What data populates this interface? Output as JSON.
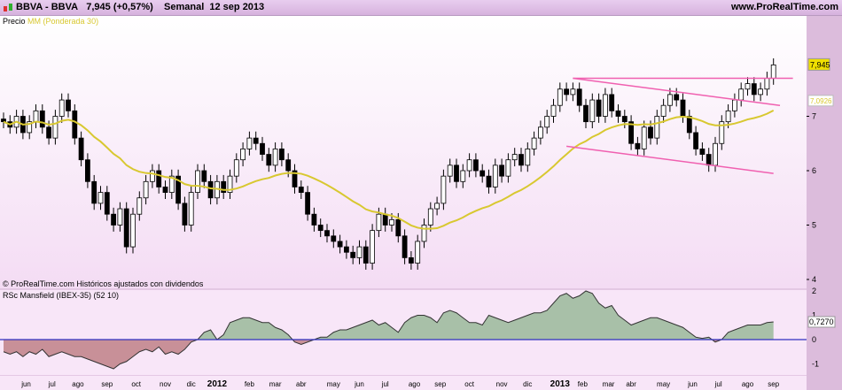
{
  "header": {
    "symbol": "BBVA - BBVA",
    "price": "7,945 (+0,57%)",
    "period": "Semanal",
    "date": "12 sep 2013",
    "site": "www.ProRealTime.com"
  },
  "legend": {
    "price": "Precio",
    "ma": "MM (Ponderada 30)"
  },
  "footer_note": "© ProRealTime.com Históricos ajustados con dividendos",
  "indicator_title": "RSc Mansfield (IBEX-35) (52 10)",
  "colors": {
    "ma": "#d8c830",
    "trend": "#f060b0",
    "rsc_pos": "#a8c0a8",
    "rsc_neg": "#c89098",
    "zero": "#3030c0",
    "bg": "#f8e6f8"
  },
  "chart_data": [
    {
      "type": "candlestick",
      "ylim": [
        3.9,
        8.7
      ],
      "yticks": [
        "4",
        "5",
        "6",
        "7"
      ],
      "last_label": "7,945",
      "ma_label": "7,0926",
      "xticks": [
        "jun",
        "jul",
        "ago",
        "sep",
        "oct",
        "nov",
        "dic",
        "2012",
        "feb",
        "mar",
        "abr",
        "may",
        "jun",
        "jul",
        "ago",
        "sep",
        "oct",
        "nov",
        "dic",
        "2013",
        "feb",
        "mar",
        "abr",
        "may",
        "jun",
        "jul",
        "ago",
        "sep"
      ],
      "xtick_weeks": [
        3.5,
        7.5,
        11.5,
        16,
        20.5,
        25,
        29,
        33,
        38,
        42,
        46,
        51,
        55,
        59,
        63.5,
        67.5,
        72,
        77,
        81,
        86,
        89.5,
        93.5,
        97,
        102,
        106.5,
        110.5,
        115,
        119
      ],
      "close": [
        6.9,
        6.8,
        7.0,
        6.7,
        6.9,
        7.1,
        6.8,
        6.6,
        7.0,
        7.3,
        7.1,
        6.6,
        6.2,
        5.8,
        5.4,
        5.6,
        5.2,
        5.0,
        5.3,
        4.6,
        5.2,
        5.5,
        5.8,
        6.0,
        5.7,
        5.6,
        5.9,
        5.4,
        5.0,
        5.6,
        6.0,
        5.8,
        5.5,
        5.8,
        5.6,
        5.9,
        6.2,
        6.4,
        6.6,
        6.5,
        6.3,
        6.1,
        6.4,
        6.2,
        6.0,
        5.7,
        5.6,
        5.2,
        5.0,
        4.9,
        4.8,
        4.7,
        4.6,
        4.5,
        4.4,
        4.6,
        4.3,
        4.9,
        5.2,
        5.0,
        5.1,
        4.8,
        4.4,
        4.3,
        4.7,
        5.0,
        5.3,
        5.4,
        5.9,
        6.1,
        5.8,
        6.0,
        6.2,
        6.0,
        5.9,
        5.7,
        6.1,
        5.9,
        6.2,
        6.3,
        6.1,
        6.4,
        6.6,
        6.8,
        7.0,
        7.2,
        7.5,
        7.4,
        7.5,
        7.2,
        6.9,
        7.3,
        7.0,
        7.4,
        7.1,
        7.0,
        6.9,
        6.5,
        6.4,
        6.8,
        6.6,
        7.0,
        7.2,
        7.4,
        7.3,
        7.0,
        6.7,
        6.4,
        6.3,
        6.1,
        6.5,
        6.9,
        7.1,
        7.3,
        7.5,
        7.6,
        7.4,
        7.5,
        7.7,
        7.945
      ],
      "trendlines": [
        {
          "w": [
            88,
            122
          ],
          "p": [
            7.7,
            7.7
          ]
        },
        {
          "w": [
            88,
            120
          ],
          "p": [
            7.7,
            7.2
          ]
        },
        {
          "w": [
            87,
            119
          ],
          "p": [
            6.45,
            5.95
          ]
        }
      ]
    },
    {
      "type": "area",
      "title": "RSc Mansfield (IBEX-35) (52 10)",
      "ylim": [
        -1.5,
        2.3
      ],
      "yticks": [
        "2",
        "1",
        "0",
        "-1"
      ],
      "last_label": "0,7270",
      "values": [
        -0.5,
        -0.6,
        -0.5,
        -0.7,
        -0.5,
        -0.6,
        -0.4,
        -0.7,
        -0.6,
        -0.5,
        -0.6,
        -0.7,
        -0.7,
        -0.8,
        -0.9,
        -1.0,
        -1.1,
        -1.2,
        -1.0,
        -0.9,
        -0.7,
        -0.5,
        -0.4,
        -0.5,
        -0.3,
        -0.6,
        -0.5,
        -0.6,
        -0.4,
        -0.1,
        0.0,
        0.3,
        0.4,
        0.0,
        0.2,
        0.7,
        0.8,
        0.9,
        0.9,
        0.8,
        0.7,
        0.7,
        0.5,
        0.4,
        0.2,
        -0.1,
        -0.2,
        -0.1,
        0.0,
        0.1,
        0.1,
        0.3,
        0.4,
        0.4,
        0.5,
        0.6,
        0.7,
        0.8,
        0.6,
        0.7,
        0.5,
        0.3,
        0.7,
        0.9,
        1.0,
        1.0,
        0.9,
        0.7,
        1.1,
        1.2,
        1.1,
        0.9,
        0.7,
        0.7,
        0.6,
        1.0,
        0.9,
        0.8,
        0.7,
        0.8,
        0.9,
        1.0,
        1.1,
        1.1,
        1.2,
        1.5,
        1.8,
        1.9,
        1.7,
        1.8,
        2.0,
        1.9,
        1.5,
        1.3,
        1.4,
        1.0,
        0.8,
        0.6,
        0.7,
        0.8,
        0.9,
        0.9,
        0.8,
        0.7,
        0.6,
        0.5,
        0.3,
        0.1,
        0.05,
        0.1,
        -0.1,
        0.0,
        0.3,
        0.4,
        0.5,
        0.6,
        0.6,
        0.6,
        0.7,
        0.727
      ]
    }
  ]
}
